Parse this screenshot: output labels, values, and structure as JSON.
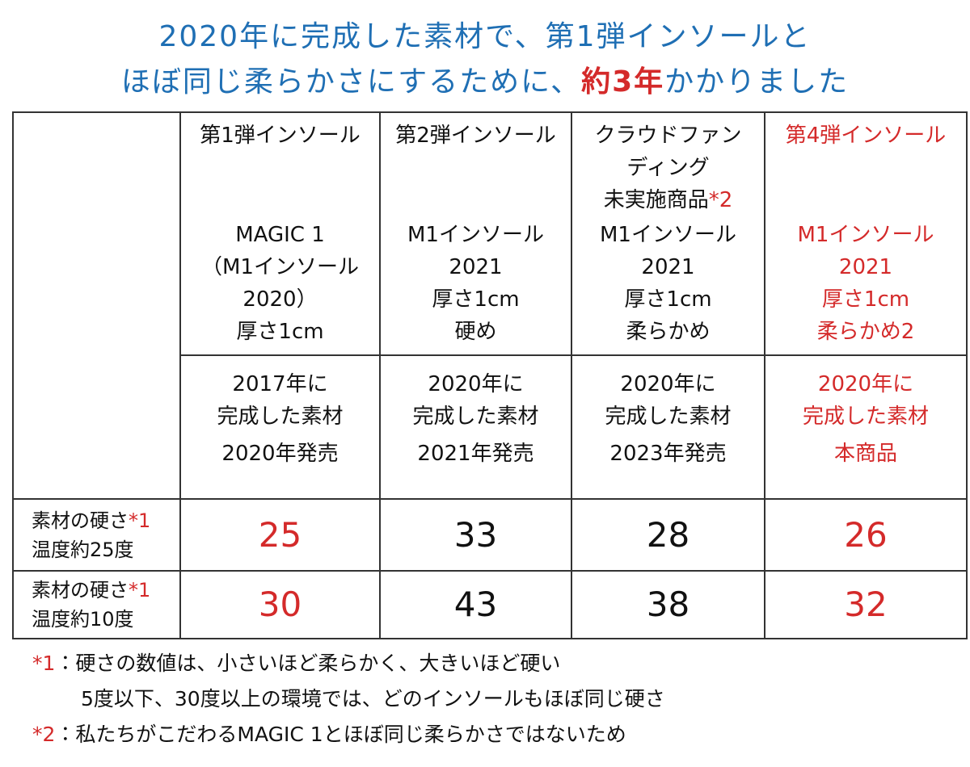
{
  "title": {
    "color": "#1f6fb4",
    "emphasis_color": "#d42a2a",
    "lines": [
      [
        {
          "text": "2020年に完成した素材で、第1弾インソールと",
          "emphasis": false
        }
      ],
      [
        {
          "text": "ほぼ同じ柔らかさにするために、",
          "emphasis": false
        },
        {
          "text": "約3年",
          "emphasis": true
        },
        {
          "text": "かかりました",
          "emphasis": false
        }
      ]
    ]
  },
  "table": {
    "note_color": "#d42a2a",
    "columns": [
      {
        "name": [
          "第1弾インソール"
        ],
        "note": null,
        "model": [
          "MAGIC 1",
          "（M1インソール",
          "2020）",
          "厚さ1cm"
        ],
        "material": [
          "2017年に",
          "完成した素材"
        ],
        "release": "2020年発売",
        "hardness": [
          25,
          30
        ],
        "text_color": "#111111",
        "value_color": "#d42a2a"
      },
      {
        "name": [
          "第2弾インソール"
        ],
        "note": null,
        "model": [
          "M1インソール",
          "2021",
          "厚さ1cm",
          "硬め"
        ],
        "material": [
          "2020年に",
          "完成した素材"
        ],
        "release": "2021年発売",
        "hardness": [
          33,
          43
        ],
        "text_color": "#111111",
        "value_color": "#111111"
      },
      {
        "name": [
          "クラウドファン",
          "ディング",
          "未実施商品"
        ],
        "note": "*2",
        "model": [
          "M1インソール",
          "2021",
          "厚さ1cm",
          "柔らかめ"
        ],
        "material": [
          "2020年に",
          "完成した素材"
        ],
        "release": "2023年発売",
        "hardness": [
          28,
          38
        ],
        "text_color": "#111111",
        "value_color": "#111111"
      },
      {
        "name": [
          "第4弾インソール"
        ],
        "note": null,
        "model": [
          "M1インソール",
          "2021",
          "厚さ1cm",
          "柔らかめ2"
        ],
        "material": [
          "2020年に",
          "完成した素材"
        ],
        "release": "本商品",
        "hardness": [
          26,
          32
        ],
        "text_color": "#d42a2a",
        "value_color": "#d42a2a"
      }
    ],
    "rows": [
      {
        "label": "素材の硬さ",
        "note": "*1",
        "sub": "温度約25度"
      },
      {
        "label": "素材の硬さ",
        "note": "*1",
        "sub": "温度約10度"
      }
    ]
  },
  "footnotes": [
    {
      "mark": "*1",
      "lines": [
        "：硬さの数値は、小さいほど柔らかく、大きいほど硬い",
        "5度以下、30度以上の環境では、どのインソールもほぼ同じ硬さ"
      ]
    },
    {
      "mark": "*2",
      "lines": [
        "：私たちがこだわるMAGIC 1とほぼ同じ柔らかさではないため"
      ]
    }
  ]
}
